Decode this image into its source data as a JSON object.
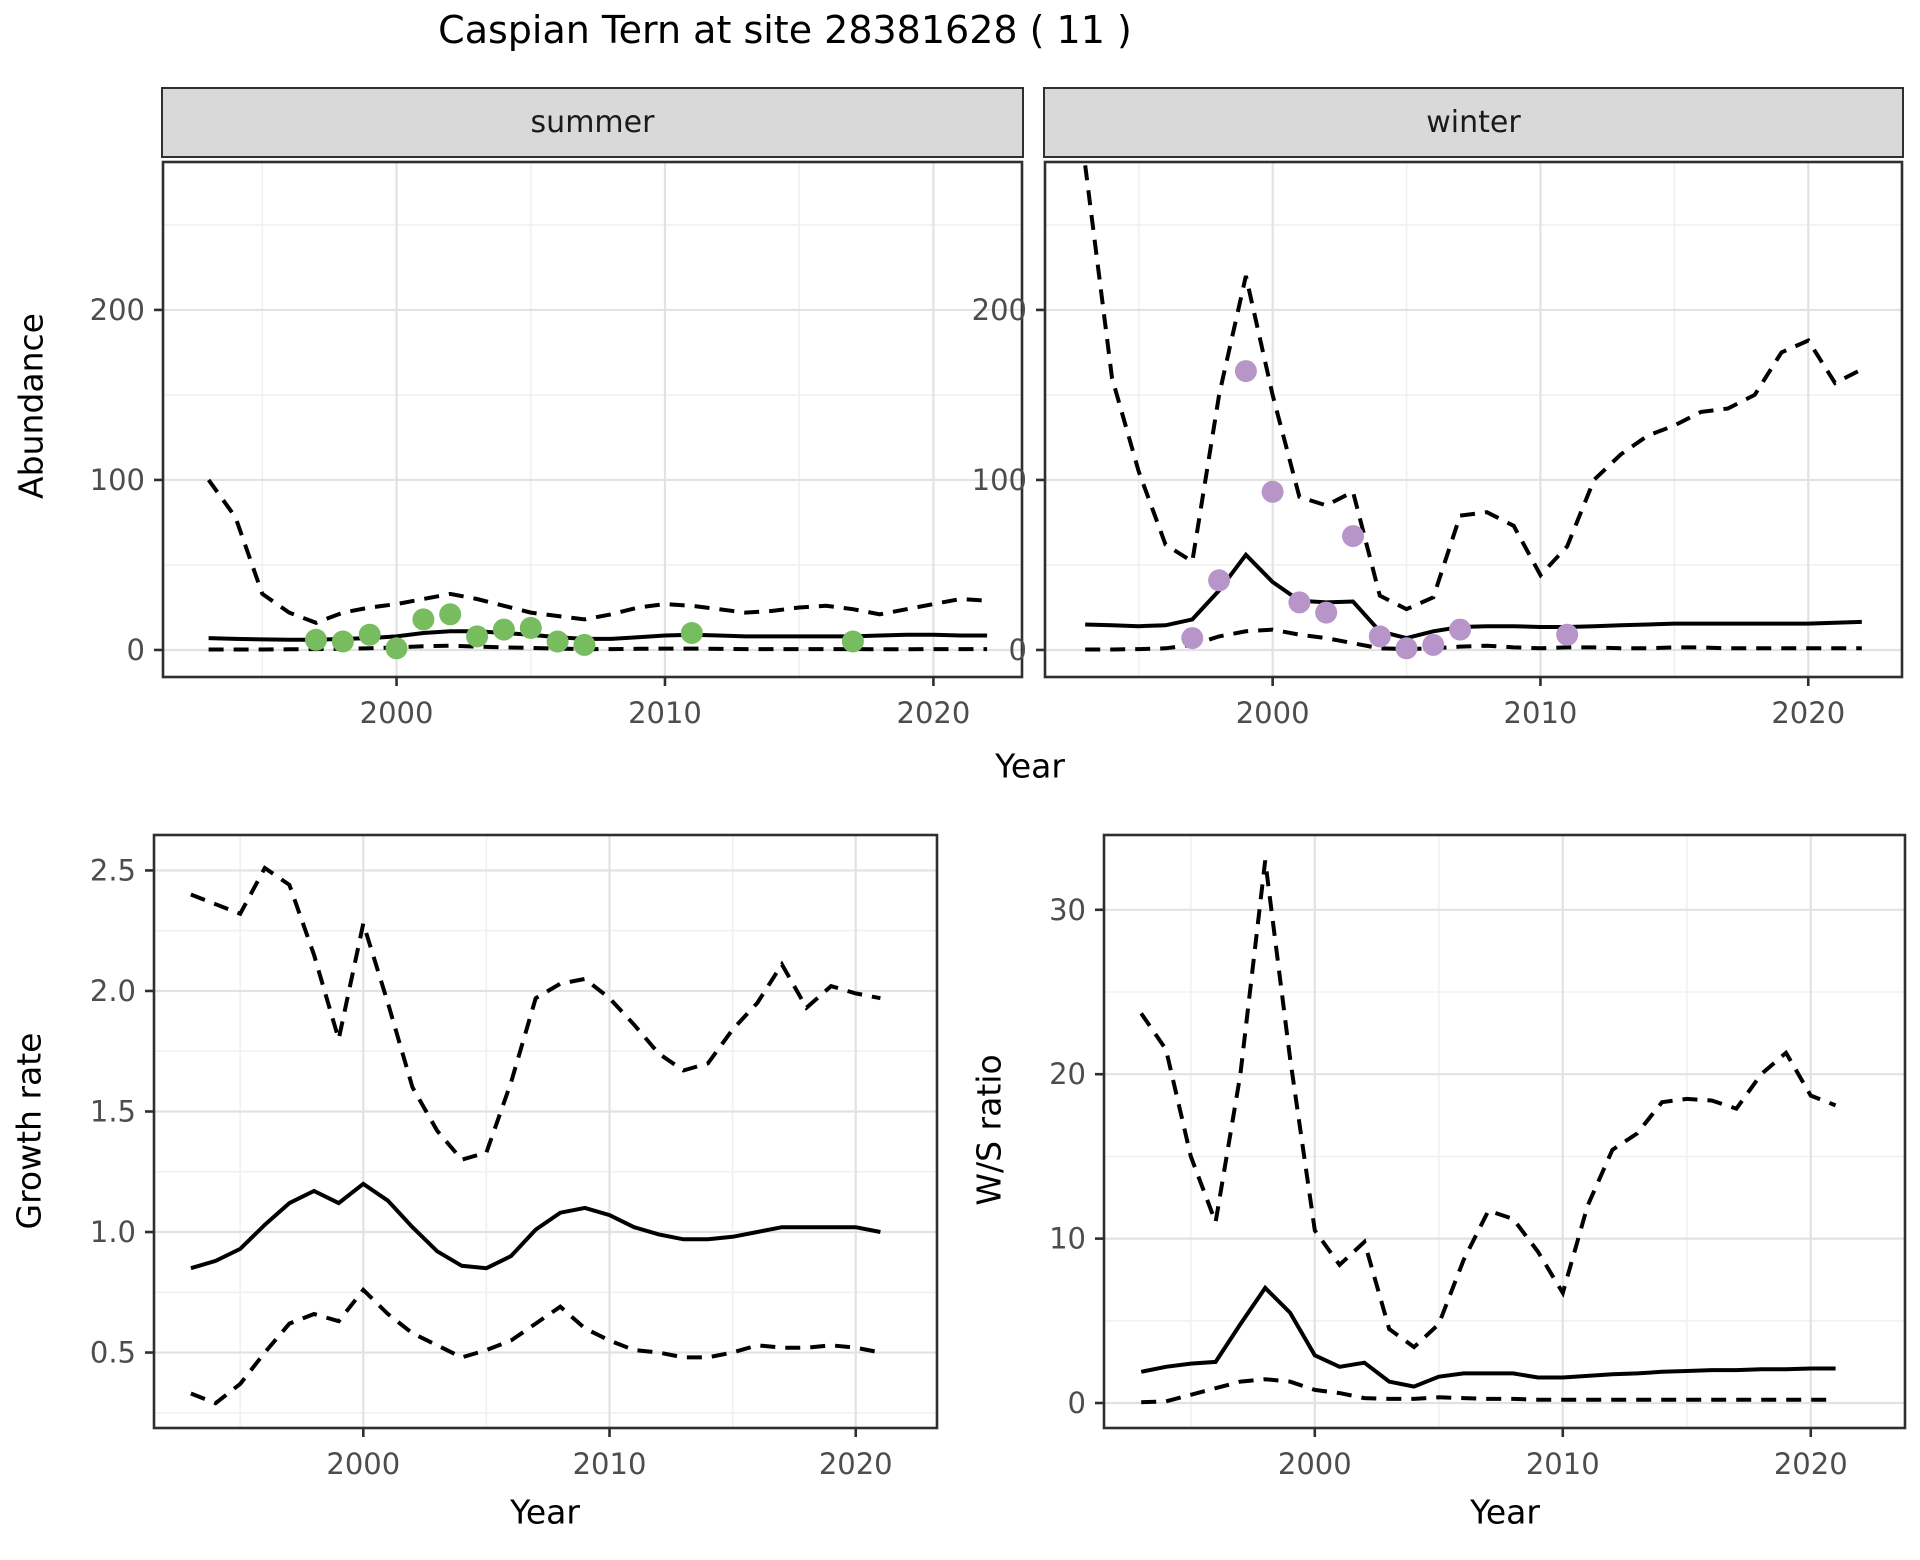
{
  "title": "Caspian Tern at site 28381628 ( 11 )",
  "axis_titles": {
    "y_top": "Abundance",
    "x_top": "Year",
    "y_growth": "Growth rate",
    "x_growth": "Year",
    "y_ws": "W/S ratio",
    "x_ws": "Year"
  },
  "colors": {
    "summer_points": "#77bc5e",
    "winter_points": "#b795c8",
    "line": "#000000",
    "strip_fill": "#d9d9d9",
    "panel_border": "#2f2f2f",
    "grid_major": "#e2e2e2",
    "grid_minor": "#f0f0f0",
    "tick_label": "#4d4d4d"
  },
  "chart_data": [
    {
      "type": "line",
      "panel": "summer",
      "facet_label": "summer",
      "xlabel": "Year",
      "ylabel": "Abundance",
      "xlim": [
        1991.3,
        2023.3
      ],
      "ylim": [
        -15.9,
        287.0
      ],
      "xticks": {
        "major": [
          2000,
          2010,
          2020
        ],
        "minor": [
          1995,
          2005,
          2015
        ],
        "labels": [
          "2000",
          "2010",
          "2020"
        ]
      },
      "yticks": {
        "major": [
          0,
          100,
          200
        ],
        "minor": [
          50,
          150,
          250
        ],
        "labels": [
          "0",
          "100",
          "200"
        ]
      },
      "series": [
        {
          "name": "upper_ci",
          "style": "dashed",
          "x": [
            1993,
            1994,
            1995,
            1996,
            1997,
            1998,
            1999,
            2000,
            2001,
            2002,
            2003,
            2004,
            2005,
            2006,
            2007,
            2008,
            2009,
            2010,
            2011,
            2012,
            2013,
            2014,
            2015,
            2016,
            2017,
            2018,
            2019,
            2020,
            2021,
            2022
          ],
          "y": [
            100,
            78,
            33,
            22,
            16,
            22,
            25,
            27,
            30,
            33,
            30,
            26,
            22,
            20,
            18,
            21,
            25,
            27,
            26,
            24,
            22,
            23,
            25,
            26,
            24,
            21,
            24,
            27,
            30,
            29
          ]
        },
        {
          "name": "median",
          "style": "solid",
          "x": [
            1993,
            1994,
            1995,
            1996,
            1997,
            1998,
            1999,
            2000,
            2001,
            2002,
            2003,
            2004,
            2005,
            2006,
            2007,
            2008,
            2009,
            2010,
            2011,
            2012,
            2013,
            2014,
            2015,
            2016,
            2017,
            2018,
            2019,
            2020,
            2021,
            2022
          ],
          "y": [
            7,
            6.5,
            6.2,
            6,
            6,
            6.5,
            7,
            8,
            10,
            11,
            11,
            10,
            9,
            7.5,
            6.5,
            6.5,
            7.5,
            8.5,
            9,
            8.5,
            8,
            8,
            8,
            8,
            8,
            8.5,
            9,
            9,
            8.5,
            8.5
          ]
        },
        {
          "name": "lower_ci",
          "style": "dashed",
          "x": [
            1993,
            1994,
            1995,
            1996,
            1997,
            1998,
            1999,
            2000,
            2001,
            2002,
            2003,
            2004,
            2005,
            2006,
            2007,
            2008,
            2009,
            2010,
            2011,
            2012,
            2013,
            2014,
            2015,
            2016,
            2017,
            2018,
            2019,
            2020,
            2021,
            2022
          ],
          "y": [
            0.3,
            0.3,
            0.3,
            0.4,
            0.5,
            0.7,
            1,
            1.5,
            2.2,
            2.5,
            2,
            1.5,
            1.2,
            0.8,
            0.5,
            0.5,
            0.7,
            0.8,
            0.8,
            0.6,
            0.5,
            0.5,
            0.5,
            0.5,
            0.5,
            0.4,
            0.4,
            0.5,
            0.5,
            0.5
          ]
        },
        {
          "name": "observations",
          "style": "points",
          "color": "#77bc5e",
          "x": [
            1997,
            1998,
            1999,
            2000,
            2001,
            2002,
            2003,
            2004,
            2005,
            2006,
            2007,
            2011,
            2017
          ],
          "y": [
            6,
            5,
            9,
            1,
            18,
            21,
            8,
            12,
            13,
            5,
            3,
            10,
            5
          ]
        }
      ]
    },
    {
      "type": "line",
      "panel": "winter",
      "facet_label": "winter",
      "xlabel": "Year",
      "ylabel": "Abundance",
      "xlim": [
        1991.5,
        2023.5
      ],
      "ylim": [
        -15.9,
        287.0
      ],
      "xticks": {
        "major": [
          2000,
          2010,
          2020
        ],
        "minor": [
          1995,
          2005,
          2015
        ],
        "labels": [
          "2000",
          "2010",
          "2020"
        ]
      },
      "yticks": {
        "major": [
          0,
          100,
          200
        ],
        "minor": [
          50,
          150,
          250
        ],
        "labels": [
          "0",
          "100",
          "200"
        ]
      },
      "series": [
        {
          "name": "upper_ci",
          "style": "dashed",
          "x": [
            1993,
            1994,
            1995,
            1996,
            1997,
            1998,
            1999,
            2000,
            2001,
            2002,
            2003,
            2004,
            2005,
            2006,
            2007,
            2008,
            2009,
            2010,
            2011,
            2012,
            2013,
            2014,
            2015,
            2016,
            2017,
            2018,
            2019,
            2020,
            2021,
            2022
          ],
          "y": [
            285,
            160,
            105,
            62,
            52,
            150,
            220,
            150,
            90,
            85,
            93,
            32,
            24,
            31,
            79,
            81,
            73,
            44,
            61,
            100,
            115,
            126,
            132,
            140,
            142,
            150,
            175,
            182,
            157,
            165
          ]
        },
        {
          "name": "median",
          "style": "solid",
          "x": [
            1993,
            1994,
            1995,
            1996,
            1997,
            1998,
            1999,
            2000,
            2001,
            2002,
            2003,
            2004,
            2005,
            2006,
            2007,
            2008,
            2009,
            2010,
            2011,
            2012,
            2013,
            2014,
            2015,
            2016,
            2017,
            2018,
            2019,
            2020,
            2021,
            2022
          ],
          "y": [
            15,
            14.5,
            14,
            14.5,
            18,
            35,
            56,
            40,
            29,
            28,
            28.5,
            11,
            7,
            11,
            13.5,
            14,
            14,
            13.5,
            13.5,
            14,
            14.5,
            15,
            15.5,
            15.5,
            15.5,
            15.5,
            15.5,
            15.5,
            16,
            16.5
          ]
        },
        {
          "name": "lower_ci",
          "style": "dashed",
          "x": [
            1993,
            1994,
            1995,
            1996,
            1997,
            1998,
            1999,
            2000,
            2001,
            2002,
            2003,
            2004,
            2005,
            2006,
            2007,
            2008,
            2009,
            2010,
            2011,
            2012,
            2013,
            2014,
            2015,
            2016,
            2017,
            2018,
            2019,
            2020,
            2021,
            2022
          ],
          "y": [
            0.3,
            0.3,
            0.5,
            1,
            3,
            8,
            11,
            12,
            9,
            7,
            4,
            1,
            0.5,
            1,
            2,
            2.5,
            1.5,
            1,
            1.5,
            1.5,
            1,
            1,
            1.5,
            1.5,
            1,
            1,
            1,
            1,
            1,
            1
          ]
        },
        {
          "name": "observations",
          "style": "points",
          "color": "#b795c8",
          "x": [
            1997,
            1998,
            1999,
            2000,
            2001,
            2002,
            2003,
            2004,
            2005,
            2006,
            2007,
            2011
          ],
          "y": [
            7,
            41,
            164,
            93,
            28,
            22,
            67,
            8,
            1,
            3,
            12,
            9
          ]
        }
      ]
    },
    {
      "type": "line",
      "panel": "growth_rate",
      "facet_label": "",
      "xlabel": "Year",
      "ylabel": "Growth rate",
      "xlim": [
        1991.5,
        2023.3
      ],
      "ylim": [
        0.187,
        2.647
      ],
      "xticks": {
        "major": [
          2000,
          2010,
          2020
        ],
        "minor": [
          1995,
          2005,
          2015
        ],
        "labels": [
          "2000",
          "2010",
          "2020"
        ]
      },
      "yticks": {
        "major": [
          0.5,
          1.0,
          1.5,
          2.0,
          2.5
        ],
        "minor": [
          0.25,
          0.75,
          1.25,
          1.75,
          2.25
        ],
        "labels": [
          "0.5",
          "1.0",
          "1.5",
          "2.0",
          "2.5"
        ]
      },
      "series": [
        {
          "name": "upper_ci",
          "style": "dashed",
          "x": [
            1993,
            1994,
            1995,
            1996,
            1997,
            1998,
            1999,
            2000,
            2001,
            2002,
            2003,
            2004,
            2005,
            2006,
            2007,
            2008,
            2009,
            2010,
            2011,
            2012,
            2013,
            2014,
            2015,
            2016,
            2017,
            2018,
            2019,
            2020,
            2021
          ],
          "y": [
            2.4,
            2.36,
            2.32,
            2.51,
            2.44,
            2.15,
            1.8,
            2.28,
            1.95,
            1.6,
            1.42,
            1.3,
            1.33,
            1.62,
            1.97,
            2.03,
            2.05,
            1.97,
            1.86,
            1.74,
            1.67,
            1.7,
            1.84,
            1.95,
            2.11,
            1.93,
            2.02,
            1.99,
            1.97
          ]
        },
        {
          "name": "median",
          "style": "solid",
          "x": [
            1993,
            1994,
            1995,
            1996,
            1997,
            1998,
            1999,
            2000,
            2001,
            2002,
            2003,
            2004,
            2005,
            2006,
            2007,
            2008,
            2009,
            2010,
            2011,
            2012,
            2013,
            2014,
            2015,
            2016,
            2017,
            2018,
            2019,
            2020,
            2021
          ],
          "y": [
            0.85,
            0.88,
            0.93,
            1.03,
            1.12,
            1.17,
            1.12,
            1.2,
            1.13,
            1.02,
            0.92,
            0.86,
            0.85,
            0.9,
            1.01,
            1.08,
            1.1,
            1.07,
            1.02,
            0.99,
            0.97,
            0.97,
            0.98,
            1.0,
            1.02,
            1.02,
            1.02,
            1.02,
            1.0
          ]
        },
        {
          "name": "lower_ci",
          "style": "dashed",
          "x": [
            1993,
            1994,
            1995,
            1996,
            1997,
            1998,
            1999,
            2000,
            2001,
            2002,
            2003,
            2004,
            2005,
            2006,
            2007,
            2008,
            2009,
            2010,
            2011,
            2012,
            2013,
            2014,
            2015,
            2016,
            2017,
            2018,
            2019,
            2020,
            2021
          ],
          "y": [
            0.33,
            0.29,
            0.37,
            0.5,
            0.62,
            0.66,
            0.63,
            0.76,
            0.66,
            0.58,
            0.53,
            0.48,
            0.51,
            0.55,
            0.62,
            0.69,
            0.6,
            0.55,
            0.51,
            0.5,
            0.48,
            0.48,
            0.5,
            0.53,
            0.52,
            0.52,
            0.53,
            0.52,
            0.5
          ]
        }
      ]
    },
    {
      "type": "line",
      "panel": "ws_ratio",
      "facet_label": "",
      "xlabel": "Year",
      "ylabel": "W/S ratio",
      "xlim": [
        1991.5,
        2023.8
      ],
      "ylim": [
        -1.52,
        34.55
      ],
      "xticks": {
        "major": [
          2000,
          2010,
          2020
        ],
        "minor": [
          1995,
          2005,
          2015
        ],
        "labels": [
          "2000",
          "2010",
          "2020"
        ]
      },
      "yticks": {
        "major": [
          0,
          10,
          20,
          30
        ],
        "minor": [
          5,
          15,
          25
        ],
        "labels": [
          "0",
          "10",
          "20",
          "30"
        ]
      },
      "series": [
        {
          "name": "upper_ci",
          "style": "dashed",
          "x": [
            1993,
            1994,
            1995,
            1996,
            1997,
            1998,
            1999,
            2000,
            2001,
            2002,
            2003,
            2004,
            2005,
            2006,
            2007,
            2008,
            2009,
            2010,
            2011,
            2012,
            2013,
            2014,
            2015,
            2016,
            2017,
            2018,
            2019,
            2020,
            2021
          ],
          "y": [
            23.7,
            21.5,
            15,
            11,
            20,
            33,
            21,
            10.5,
            8.4,
            9.8,
            4.5,
            3.4,
            4.8,
            8.7,
            11.7,
            11.2,
            9.2,
            6.7,
            12,
            15.4,
            16.4,
            18.3,
            18.5,
            18.4,
            17.9,
            20,
            21.3,
            18.7,
            18.1
          ]
        },
        {
          "name": "median",
          "style": "solid",
          "x": [
            1993,
            1994,
            1995,
            1996,
            1997,
            1998,
            1999,
            2000,
            2001,
            2002,
            2003,
            2004,
            2005,
            2006,
            2007,
            2008,
            2009,
            2010,
            2011,
            2012,
            2013,
            2014,
            2015,
            2016,
            2017,
            2018,
            2019,
            2020,
            2021
          ],
          "y": [
            1.9,
            2.2,
            2.4,
            2.5,
            4.8,
            7.0,
            5.5,
            2.9,
            2.2,
            2.45,
            1.3,
            1.0,
            1.6,
            1.8,
            1.8,
            1.8,
            1.55,
            1.55,
            1.65,
            1.75,
            1.8,
            1.9,
            1.95,
            2.0,
            2.0,
            2.05,
            2.05,
            2.1,
            2.1
          ]
        },
        {
          "name": "lower_ci",
          "style": "dashed",
          "x": [
            1993,
            1994,
            1995,
            1996,
            1997,
            1998,
            1999,
            2000,
            2001,
            2002,
            2003,
            2004,
            2005,
            2006,
            2007,
            2008,
            2009,
            2010,
            2011,
            2012,
            2013,
            2014,
            2015,
            2016,
            2017,
            2018,
            2019,
            2020,
            2021
          ],
          "y": [
            0.05,
            0.1,
            0.5,
            0.9,
            1.3,
            1.45,
            1.3,
            0.8,
            0.6,
            0.3,
            0.25,
            0.25,
            0.35,
            0.3,
            0.25,
            0.25,
            0.2,
            0.2,
            0.2,
            0.2,
            0.2,
            0.2,
            0.2,
            0.2,
            0.2,
            0.2,
            0.2,
            0.2,
            0.2
          ]
        }
      ]
    }
  ]
}
